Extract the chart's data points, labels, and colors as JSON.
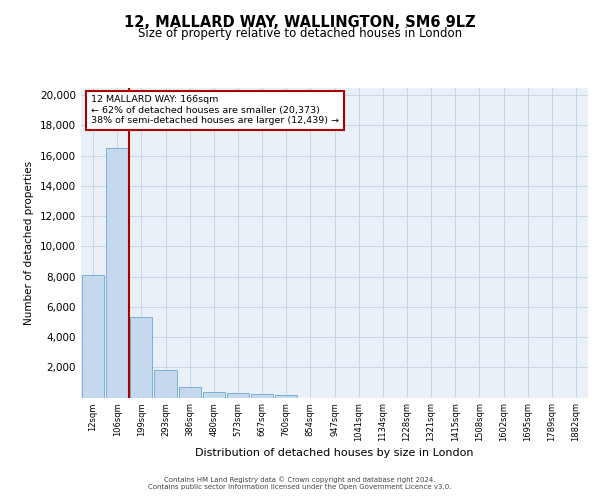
{
  "title_line1": "12, MALLARD WAY, WALLINGTON, SM6 9LZ",
  "title_line2": "Size of property relative to detached houses in London",
  "xlabel": "Distribution of detached houses by size in London",
  "ylabel": "Number of detached properties",
  "bar_color": "#c5d8ee",
  "bar_edge_color": "#7aafd4",
  "grid_color": "#c8d4e4",
  "background_color": "#eaf0f8",
  "vline_color": "#aa0000",
  "annotation_text": "12 MALLARD WAY: 166sqm\n← 62% of detached houses are smaller (20,373)\n38% of semi-detached houses are larger (12,439) →",
  "categories": [
    "12sqm",
    "106sqm",
    "199sqm",
    "293sqm",
    "386sqm",
    "480sqm",
    "573sqm",
    "667sqm",
    "760sqm",
    "854sqm",
    "947sqm",
    "1041sqm",
    "1134sqm",
    "1228sqm",
    "1321sqm",
    "1415sqm",
    "1508sqm",
    "1602sqm",
    "1695sqm",
    "1789sqm",
    "1882sqm"
  ],
  "values": [
    8100,
    16500,
    5300,
    1850,
    680,
    370,
    290,
    220,
    170,
    0,
    0,
    0,
    0,
    0,
    0,
    0,
    0,
    0,
    0,
    0,
    0
  ],
  "ylim": [
    0,
    20500
  ],
  "yticks": [
    0,
    2000,
    4000,
    6000,
    8000,
    10000,
    12000,
    14000,
    16000,
    18000,
    20000
  ],
  "footer_line1": "Contains HM Land Registry data © Crown copyright and database right 2024.",
  "footer_line2": "Contains public sector information licensed under the Open Government Licence v3.0.",
  "vline_x_index": 1.5
}
